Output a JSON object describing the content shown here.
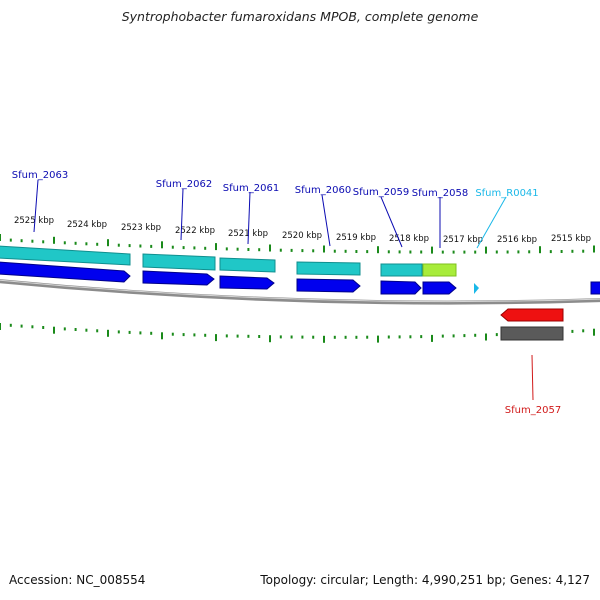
{
  "title": "Syntrophobacter fumaroxidans MPOB, complete genome",
  "footer": {
    "accession": "Accession: NC_008554",
    "summary": "Topology: circular; Length: 4,990,251 bp; Genes: 4,127"
  },
  "colors": {
    "background": "#ffffff",
    "tick": "#1a8a1a",
    "backbone": "#8c8c8c",
    "gene_cds_forward": "#0000ee",
    "gene_forward": "#20c7c7",
    "gene_pseudo": "#a8ec3a",
    "gene_cds_reverse": "#ee1111",
    "gene_reverse": "#5a5a5a",
    "label_gene": "#0b0bb2",
    "label_rna": "#1ab8e8",
    "label_reverse": "#d11a1a"
  },
  "kbp_labels": [
    "2525 kbp",
    "2524 kbp",
    "2523 kbp",
    "2522 kbp",
    "2521 kbp",
    "2520 kbp",
    "2519 kbp",
    "2518 kbp",
    "2517 kbp",
    "2516 kbp",
    "2515 kbp"
  ],
  "forward_labels": [
    "Sfum_2063",
    "Sfum_2062",
    "Sfum_2061",
    "Sfum_2060",
    "Sfum_2059",
    "Sfum_2058",
    "Sfum_R0041"
  ],
  "reverse_labels": [
    "Sfum_2057"
  ]
}
